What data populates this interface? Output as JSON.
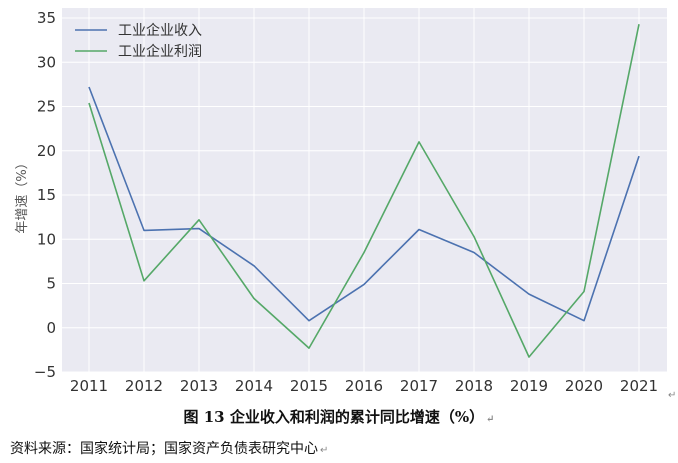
{
  "chart_data": {
    "type": "line",
    "categories": [
      "2011",
      "2012",
      "2013",
      "2014",
      "2015",
      "2016",
      "2017",
      "2018",
      "2019",
      "2020",
      "2021"
    ],
    "series": [
      {
        "name": "工业企业收入",
        "color": "#4c72b0",
        "values": [
          27.2,
          11.0,
          11.2,
          7.0,
          0.8,
          4.9,
          11.1,
          8.5,
          3.8,
          0.8,
          19.4
        ]
      },
      {
        "name": "工业企业利润",
        "color": "#55a868",
        "values": [
          25.4,
          5.3,
          12.2,
          3.3,
          -2.3,
          8.5,
          21.0,
          10.3,
          -3.3,
          4.1,
          34.3
        ]
      }
    ],
    "ylabel": "年增速（%）",
    "ylim": [
      -5,
      35
    ],
    "yticks": [
      "35",
      "30",
      "25",
      "20",
      "15",
      "10",
      "5",
      "0",
      "−5"
    ],
    "grid": true,
    "legend": "top-left",
    "background": "#eaeaf2"
  },
  "caption": "图 13  企业收入和利润的累计同比增速（%）",
  "source": "资料来源：国家统计局；国家资产负债表研究中心",
  "para_mark": "↵",
  "return_mark": "↵"
}
